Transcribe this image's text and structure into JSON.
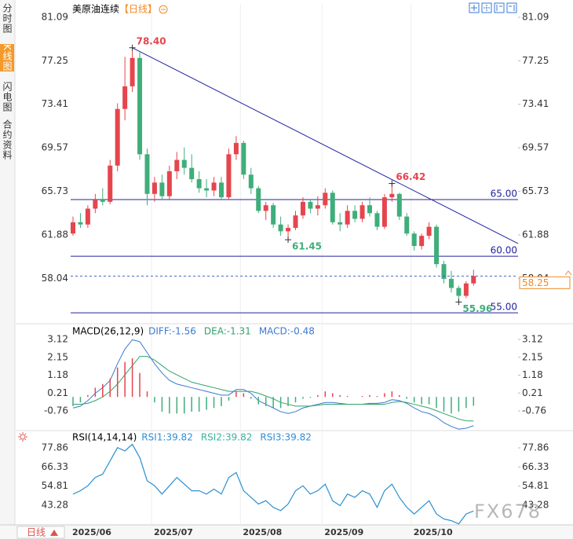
{
  "tabs": [
    "分时图",
    "K线图",
    "闪电图",
    "合约资料"
  ],
  "active_tab": 1,
  "period_button": "日线",
  "watermark": "FX678",
  "chart_data": [
    {
      "type": "candlestick",
      "title": "美原油连续",
      "subtitle": "【日线】",
      "categories": [
        "2025/06",
        null,
        null,
        null,
        null,
        null,
        null,
        null,
        null,
        null,
        null,
        "2025/07",
        null,
        null,
        null,
        null,
        null,
        null,
        null,
        null,
        null,
        null,
        null,
        "2025/08",
        null,
        null,
        null,
        null,
        null,
        null,
        null,
        null,
        null,
        null,
        "2025/09",
        null,
        null,
        null,
        null,
        null,
        null,
        null,
        null,
        null,
        null,
        null,
        "2025/10",
        null,
        null,
        null,
        null,
        null,
        null,
        null,
        null
      ],
      "open": [
        62.0,
        63.0,
        62.8,
        64.2,
        65.0,
        64.8,
        68.0,
        73.0,
        75.0,
        77.5,
        69.0,
        65.5,
        66.5,
        65.3,
        67.5,
        68.5,
        67.8,
        66.8,
        66.0,
        65.8,
        66.5,
        65.2,
        69.0,
        70.0,
        67.2,
        66.0,
        64.0,
        64.5,
        62.8,
        62.2,
        62.5,
        63.6,
        64.8,
        64.2,
        64.5,
        65.6,
        63.0,
        62.8,
        64.0,
        63.3,
        64.5,
        63.8,
        62.6,
        65.2,
        65.5,
        63.5,
        62.0,
        60.9,
        61.8,
        62.6,
        59.3,
        58.0,
        57.2,
        56.5,
        57.6
      ],
      "high": [
        63.5,
        63.8,
        64.5,
        65.5,
        66.0,
        68.5,
        73.5,
        77.6,
        78.4,
        78.0,
        69.5,
        67.0,
        67.2,
        68.0,
        69.2,
        69.6,
        69.0,
        67.5,
        66.8,
        67.0,
        67.0,
        69.5,
        70.6,
        70.2,
        67.8,
        66.2,
        64.8,
        64.7,
        63.5,
        62.8,
        64.0,
        65.2,
        65.0,
        65.3,
        66.0,
        65.8,
        63.8,
        64.5,
        64.5,
        64.8,
        65.2,
        64.0,
        65.5,
        66.42,
        65.6,
        63.8,
        62.2,
        62.0,
        63.0,
        62.8,
        59.6,
        58.7,
        57.4,
        57.8,
        58.8
      ],
      "low": [
        61.8,
        62.5,
        62.5,
        63.8,
        64.5,
        64.6,
        67.5,
        72.0,
        74.5,
        68.5,
        64.5,
        64.8,
        65.0,
        65.0,
        66.8,
        67.2,
        66.5,
        65.6,
        65.2,
        65.3,
        65.0,
        65.0,
        68.5,
        66.8,
        65.5,
        63.8,
        63.2,
        62.5,
        61.8,
        61.45,
        62.3,
        63.3,
        63.8,
        63.6,
        64.2,
        62.8,
        62.2,
        62.5,
        63.0,
        63.0,
        63.5,
        62.3,
        62.4,
        64.8,
        63.2,
        61.8,
        60.5,
        60.6,
        61.5,
        59.0,
        57.6,
        56.8,
        55.96,
        56.3,
        57.4
      ],
      "close": [
        63.0,
        62.8,
        64.2,
        65.0,
        64.8,
        68.0,
        73.0,
        75.0,
        77.5,
        69.0,
        65.5,
        66.5,
        65.3,
        67.5,
        68.5,
        67.8,
        66.8,
        66.0,
        65.8,
        66.5,
        65.2,
        69.0,
        70.0,
        67.2,
        66.0,
        64.0,
        64.5,
        62.8,
        62.2,
        62.5,
        63.6,
        64.8,
        64.2,
        64.5,
        65.6,
        63.0,
        62.8,
        64.0,
        63.3,
        64.5,
        63.8,
        62.6,
        65.2,
        65.5,
        63.5,
        62.0,
        60.9,
        61.8,
        62.6,
        59.3,
        58.0,
        57.2,
        56.5,
        57.6,
        58.25
      ],
      "up_color": "#e5454d",
      "down_color": "#3fae7a",
      "ylim": [
        54.18,
        82.27
      ],
      "yticks": [
        81.09,
        77.25,
        73.41,
        69.57,
        65.73,
        61.88,
        58.04
      ],
      "grid": false,
      "levels": [
        {
          "value": 65,
          "label": "65.00"
        },
        {
          "value": 60,
          "label": "60.00"
        },
        {
          "value": 55,
          "label": "55.00"
        }
      ],
      "level_color": "#22229e",
      "annotations": [
        {
          "value": 78.4,
          "label": "78.40"
        },
        66.42,
        61.45,
        55.96
      ],
      "trendline": [
        78.4,
        61.12
      ],
      "trendline_color": "#22229e",
      "last_color": "#f08a24"
    },
    {
      "type": "macd",
      "title": "MACD(26,12,9)",
      "ylim": [
        -1.826,
        3.845
      ],
      "yticks": [
        3.12,
        2.15,
        1.18,
        0.21,
        -0.76
      ],
      "series": [
        {
          "name": "DIFF:-1.56",
          "kind": "line",
          "color": "#3a7ad0",
          "values": [
            -0.6,
            -0.5,
            -0.2,
            0.2,
            0.5,
            0.9,
            1.8,
            2.6,
            3.1,
            3.0,
            2.4,
            1.8,
            1.3,
            0.9,
            0.7,
            0.6,
            0.5,
            0.4,
            0.3,
            0.2,
            0.1,
            0.1,
            0.4,
            0.4,
            0.2,
            -0.2,
            -0.4,
            -0.6,
            -0.8,
            -0.9,
            -0.8,
            -0.6,
            -0.5,
            -0.4,
            -0.3,
            -0.3,
            -0.35,
            -0.4,
            -0.4,
            -0.4,
            -0.35,
            -0.35,
            -0.3,
            -0.15,
            -0.2,
            -0.35,
            -0.6,
            -0.8,
            -0.9,
            -1.1,
            -1.4,
            -1.6,
            -1.75,
            -1.7,
            -1.56
          ]
        },
        {
          "name": "DEA:-1.31",
          "kind": "line",
          "color": "#2fa36b",
          "values": [
            -0.4,
            -0.4,
            -0.35,
            -0.2,
            0.0,
            0.3,
            0.7,
            1.2,
            1.7,
            2.2,
            2.2,
            2.0,
            1.7,
            1.4,
            1.2,
            1.0,
            0.8,
            0.7,
            0.6,
            0.5,
            0.4,
            0.3,
            0.3,
            0.3,
            0.3,
            0.2,
            0.05,
            -0.1,
            -0.3,
            -0.4,
            -0.5,
            -0.5,
            -0.5,
            -0.45,
            -0.4,
            -0.4,
            -0.4,
            -0.4,
            -0.4,
            -0.4,
            -0.4,
            -0.4,
            -0.4,
            -0.3,
            -0.25,
            -0.3,
            -0.4,
            -0.5,
            -0.6,
            -0.75,
            -0.9,
            -1.05,
            -1.2,
            -1.3,
            -1.31
          ]
        },
        {
          "name": "MACD:-0.48",
          "kind": "bar",
          "color": "#3a7ad0",
          "up_color": "#e5454d",
          "down_color": "#3fae7a",
          "values": [
            -0.5,
            -0.3,
            0.1,
            0.5,
            0.7,
            1.0,
            1.6,
            1.9,
            2.1,
            1.3,
            0.3,
            -0.3,
            -0.8,
            -0.9,
            -0.9,
            -0.9,
            -0.8,
            -0.8,
            -0.7,
            -0.6,
            -0.5,
            -0.2,
            0.3,
            0.2,
            -0.1,
            -0.4,
            -0.5,
            -0.6,
            -0.6,
            -0.5,
            -0.3,
            -0.1,
            -0.05,
            0.1,
            0.3,
            0.2,
            0.1,
            0.05,
            0.0,
            0.05,
            0.1,
            0.05,
            0.2,
            0.3,
            0.1,
            -0.1,
            -0.3,
            -0.4,
            -0.4,
            -0.6,
            -0.8,
            -0.9,
            -0.8,
            -0.6,
            -0.48
          ]
        }
      ]
    },
    {
      "type": "rsi",
      "title": "RSI(14,14,14)",
      "ylim": [
        31.44,
        87.33
      ],
      "yticks": [
        77.86,
        66.33,
        54.81,
        43.28
      ],
      "series": [
        {
          "name": "RSI1:39.82",
          "kind": "line",
          "color": "#2f8fd8",
          "values": [
            50,
            52,
            55,
            60,
            62,
            70,
            78,
            76,
            80,
            72,
            58,
            55,
            50,
            55,
            60,
            56,
            52,
            52,
            50,
            53,
            50,
            60,
            63,
            52,
            48,
            44,
            46,
            42,
            40,
            44,
            52,
            55,
            50,
            52,
            56,
            46,
            43,
            50,
            48,
            52,
            50,
            42,
            52,
            56,
            48,
            42,
            38,
            42,
            46,
            38,
            35,
            34,
            32,
            38,
            39.82
          ]
        },
        {
          "name": "RSI2:39.82",
          "kind": "line",
          "color": "#3cb2a0",
          "values": [
            50,
            52,
            55,
            60,
            62,
            70,
            78,
            76,
            80,
            72,
            58,
            55,
            50,
            55,
            60,
            56,
            52,
            52,
            50,
            53,
            50,
            60,
            63,
            52,
            48,
            44,
            46,
            42,
            40,
            44,
            52,
            55,
            50,
            52,
            56,
            46,
            43,
            50,
            48,
            52,
            50,
            42,
            52,
            56,
            48,
            42,
            38,
            42,
            46,
            38,
            35,
            34,
            32,
            38,
            39.82
          ]
        },
        {
          "name": "RSI3:39.82",
          "kind": "line",
          "color": "#2f8fd8",
          "values": [
            50,
            52,
            55,
            60,
            62,
            70,
            78,
            76,
            80,
            72,
            58,
            55,
            50,
            55,
            60,
            56,
            52,
            52,
            50,
            53,
            50,
            60,
            63,
            52,
            48,
            44,
            46,
            42,
            40,
            44,
            52,
            55,
            50,
            52,
            56,
            46,
            43,
            50,
            48,
            52,
            50,
            42,
            52,
            56,
            48,
            42,
            38,
            42,
            46,
            38,
            35,
            34,
            32,
            38,
            39.82
          ]
        }
      ]
    }
  ]
}
